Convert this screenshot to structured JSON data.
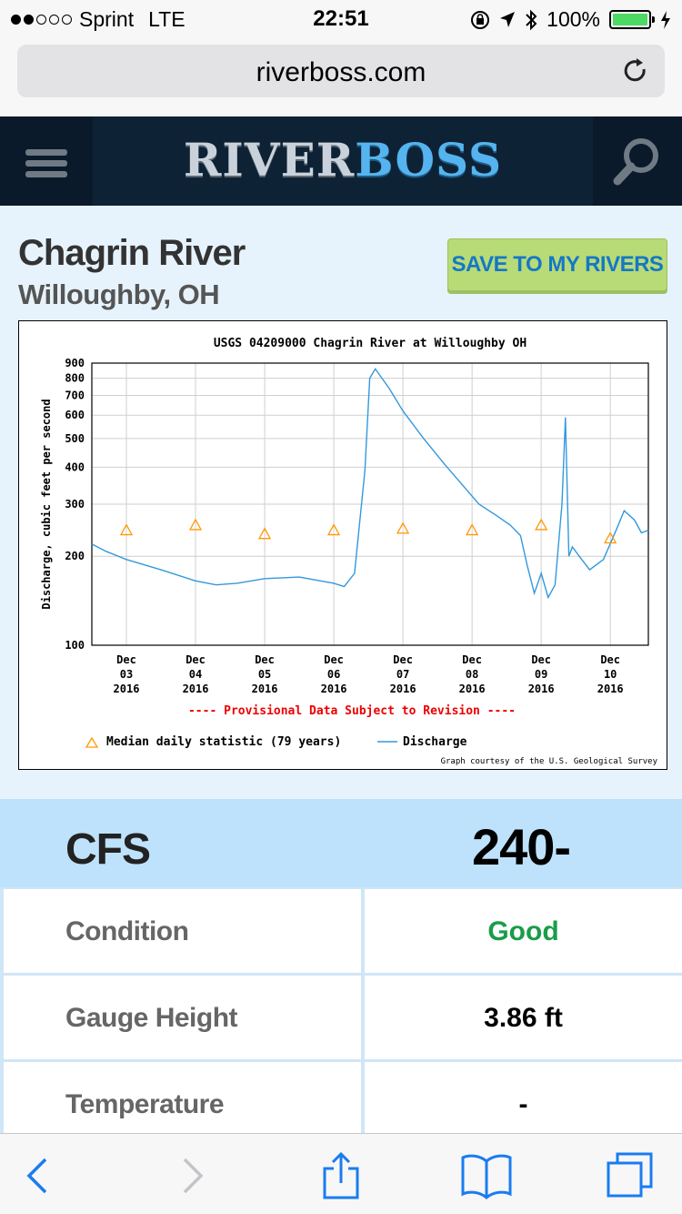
{
  "status": {
    "carrier": "Sprint",
    "network": "LTE",
    "time": "22:51",
    "battery": "100%"
  },
  "browser": {
    "url": "riverboss.com"
  },
  "site": {
    "logo_part1": "RIVER",
    "logo_part2": "BOSS"
  },
  "river": {
    "name": "Chagrin River",
    "location": "Willoughby, OH",
    "save_label": "SAVE TO MY RIVERS"
  },
  "chart_data": {
    "type": "line",
    "title": "USGS 04209000 Chagrin River at Willoughby OH",
    "ylabel": "Discharge, cubic feet per second",
    "yscale": "log",
    "ylim": [
      100,
      900
    ],
    "y_ticks": [
      "900",
      "800",
      "700",
      "600",
      "500",
      "400",
      "300",
      "200",
      "100"
    ],
    "x_ticks": [
      [
        "Dec",
        "03",
        "2016"
      ],
      [
        "Dec",
        "04",
        "2016"
      ],
      [
        "Dec",
        "05",
        "2016"
      ],
      [
        "Dec",
        "06",
        "2016"
      ],
      [
        "Dec",
        "07",
        "2016"
      ],
      [
        "Dec",
        "08",
        "2016"
      ],
      [
        "Dec",
        "09",
        "2016"
      ],
      [
        "Dec",
        "10",
        "2016"
      ]
    ],
    "series": [
      {
        "name": "Discharge",
        "color": "#3399dd",
        "x": [
          2.5,
          2.7,
          3.0,
          3.5,
          4.0,
          4.3,
          4.6,
          5.0,
          5.5,
          6.0,
          6.15,
          6.3,
          6.45,
          6.52,
          6.6,
          6.8,
          7.0,
          7.3,
          7.6,
          7.9,
          8.1,
          8.35,
          8.55,
          8.7,
          8.8,
          8.9,
          9.0,
          9.1,
          9.2,
          9.3,
          9.35,
          9.4,
          9.45,
          9.55,
          9.7,
          9.9,
          10.1,
          10.2,
          10.35,
          10.45,
          10.55
        ],
        "values": [
          220,
          208,
          195,
          180,
          165,
          160,
          162,
          168,
          170,
          162,
          158,
          175,
          390,
          800,
          860,
          740,
          620,
          500,
          410,
          340,
          300,
          275,
          255,
          235,
          185,
          150,
          175,
          145,
          160,
          300,
          590,
          200,
          215,
          200,
          180,
          195,
          250,
          285,
          265,
          240,
          245
        ]
      },
      {
        "name": "Median daily statistic (79 years)",
        "color": "#ff9900",
        "x": [
          3.0,
          4.0,
          5.0,
          6.0,
          7.0,
          8.0,
          9.0,
          10.0
        ],
        "values": [
          245,
          255,
          238,
          245,
          248,
          245,
          255,
          230
        ]
      }
    ],
    "legend": [
      {
        "name": "Median daily statistic (79 years)"
      },
      {
        "name": "Discharge"
      }
    ],
    "annotation": "---- Provisional Data Subject to Revision ----",
    "credit": "Graph courtesy of the U.S. Geological Survey",
    "grid": true
  },
  "stats": {
    "cfs_label": "CFS",
    "cfs_value": "240-",
    "rows": [
      {
        "label": "Condition",
        "value": "Good",
        "color": "#1a9c4a"
      },
      {
        "label": "Gauge Height",
        "value": "3.86 ft",
        "color": "#000000"
      },
      {
        "label": "Temperature",
        "value": "-",
        "color": "#000000"
      }
    ]
  },
  "icons": {
    "back": "chevron-left-icon",
    "forward": "chevron-right-icon",
    "share": "share-icon",
    "bookmarks": "book-icon",
    "tabs": "tabs-icon"
  }
}
